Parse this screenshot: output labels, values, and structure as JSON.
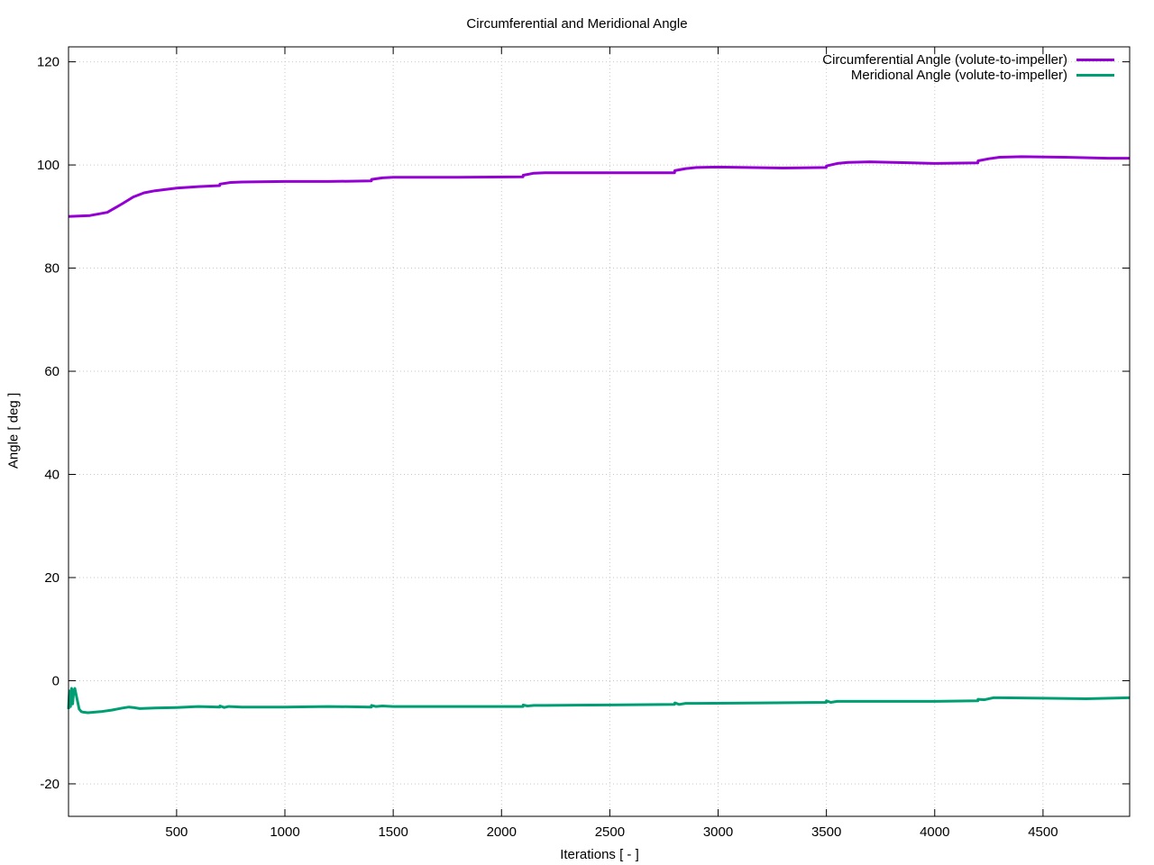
{
  "chart_data": {
    "type": "line",
    "title": "Circumferential and Meridional Angle",
    "xlabel": "Iterations [ - ]",
    "ylabel": "Angle [ deg ]",
    "xlim": [
      1,
      4900
    ],
    "ylim": [
      -26.3,
      122.9
    ],
    "xticks": [
      500,
      1000,
      1500,
      2000,
      2500,
      3000,
      3500,
      4000,
      4500
    ],
    "yticks": [
      -20,
      0,
      20,
      40,
      60,
      80,
      100,
      120
    ],
    "grid": true,
    "legend_position": "top-right",
    "series": [
      {
        "name": "Circumferential Angle (volute-to-impeller)",
        "color": "#9400d3",
        "x": [
          1,
          100,
          180,
          250,
          300,
          350,
          400,
          500,
          600,
          699,
          700,
          750,
          800,
          1000,
          1200,
          1399,
          1400,
          1450,
          1500,
          1800,
          2099,
          2100,
          2150,
          2200,
          2500,
          2799,
          2800,
          2850,
          2900,
          3000,
          3300,
          3499,
          3500,
          3550,
          3600,
          3700,
          4000,
          4199,
          4200,
          4250,
          4300,
          4400,
          4600,
          4800,
          4900
        ],
        "y": [
          90.0,
          90.2,
          90.8,
          92.5,
          93.8,
          94.6,
          95.0,
          95.5,
          95.8,
          96.0,
          96.3,
          96.6,
          96.7,
          96.8,
          96.8,
          96.9,
          97.2,
          97.5,
          97.6,
          97.6,
          97.7,
          98.0,
          98.4,
          98.5,
          98.5,
          98.5,
          98.9,
          99.3,
          99.5,
          99.6,
          99.4,
          99.5,
          99.8,
          100.3,
          100.5,
          100.6,
          100.3,
          100.4,
          100.8,
          101.2,
          101.5,
          101.6,
          101.5,
          101.3,
          101.3
        ]
      },
      {
        "name": "Meridional Angle (volute-to-impeller)",
        "color": "#009e73",
        "x": [
          1,
          5,
          10,
          15,
          20,
          25,
          30,
          40,
          50,
          60,
          70,
          90,
          120,
          150,
          200,
          250,
          280,
          300,
          330,
          400,
          500,
          600,
          699,
          700,
          720,
          740,
          800,
          1000,
          1200,
          1399,
          1400,
          1420,
          1450,
          1500,
          1800,
          2099,
          2100,
          2120,
          2150,
          2200,
          2500,
          2799,
          2800,
          2820,
          2850,
          2900,
          3200,
          3499,
          3500,
          3520,
          3550,
          3600,
          4000,
          4199,
          4200,
          4230,
          4270,
          4300,
          4500,
          4700,
          4900
        ],
        "y": [
          -5.5,
          -2.0,
          -5.0,
          -1.5,
          -4.5,
          -2.0,
          -1.5,
          -3.5,
          -5.5,
          -6.0,
          -6.1,
          -6.2,
          -6.1,
          -6.0,
          -5.7,
          -5.3,
          -5.1,
          -5.2,
          -5.4,
          -5.3,
          -5.2,
          -5.0,
          -5.1,
          -4.9,
          -5.2,
          -5.0,
          -5.1,
          -5.1,
          -5.0,
          -5.1,
          -4.8,
          -5.0,
          -4.9,
          -5.0,
          -5.0,
          -5.0,
          -4.7,
          -4.9,
          -4.8,
          -4.8,
          -4.7,
          -4.6,
          -4.3,
          -4.6,
          -4.4,
          -4.4,
          -4.3,
          -4.2,
          -3.9,
          -4.2,
          -4.0,
          -4.0,
          -4.0,
          -3.9,
          -3.6,
          -3.7,
          -3.3,
          -3.3,
          -3.4,
          -3.5,
          -3.3
        ]
      }
    ]
  }
}
